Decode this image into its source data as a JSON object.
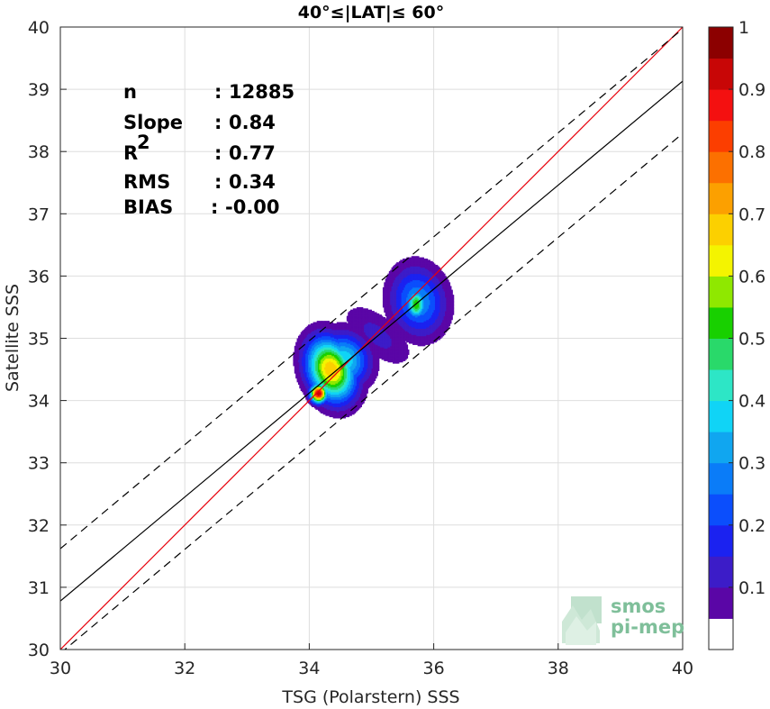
{
  "chart_data": {
    "type": "heatmap",
    "title": "40°≤|LAT|≤ 60°",
    "xlabel": "TSG (Polarstern) SSS",
    "ylabel": "Satellite SSS",
    "xlim": [
      30,
      40
    ],
    "ylim": [
      30,
      40
    ],
    "xticks": [
      "30",
      "32",
      "34",
      "36",
      "38",
      "40"
    ],
    "yticks": [
      "30",
      "31",
      "32",
      "33",
      "34",
      "35",
      "36",
      "37",
      "38",
      "39",
      "40"
    ],
    "grid": true,
    "stats": [
      {
        "label": "n",
        "sep": ":",
        "value": "12885"
      },
      {
        "label": "Slope",
        "sep": ":",
        "value": "0.84"
      },
      {
        "label": "R",
        "sup": "2",
        "sep": ":",
        "value": "0.77"
      },
      {
        "label": "RMS",
        "sep": ":",
        "value": "0.34"
      },
      {
        "label": "BIAS",
        "sep": ":",
        "value": "-0.00"
      }
    ],
    "lines": [
      {
        "name": "one-to-one",
        "color": "#e8000b",
        "style": "solid",
        "points": [
          [
            30,
            30
          ],
          [
            40,
            40
          ]
        ]
      },
      {
        "name": "regression",
        "color": "#000000",
        "style": "solid",
        "points": [
          [
            30,
            30.78
          ],
          [
            40,
            39.13
          ]
        ]
      },
      {
        "name": "upper-bound",
        "color": "#000000",
        "style": "dashed",
        "points": [
          [
            30,
            31.62
          ],
          [
            40,
            39.97
          ]
        ]
      },
      {
        "name": "lower-bound",
        "color": "#000000",
        "style": "dashed",
        "points": [
          [
            30,
            29.94
          ],
          [
            40,
            38.29
          ]
        ]
      }
    ],
    "density_clusters": [
      {
        "center": [
          34.15,
          34.12
        ],
        "sx": 0.09,
        "sy": 0.1,
        "rot": 0,
        "peak": 0.95
      },
      {
        "center": [
          34.35,
          34.5
        ],
        "sx": 0.25,
        "sy": 0.35,
        "rot": -0.35,
        "peak": 0.7
      },
      {
        "center": [
          34.55,
          34.65
        ],
        "sx": 0.28,
        "sy": 0.3,
        "rot": -0.4,
        "peak": 0.4
      },
      {
        "center": [
          35.72,
          35.55
        ],
        "sx": 0.11,
        "sy": 0.16,
        "rot": 0,
        "peak": 0.55
      },
      {
        "center": [
          35.75,
          35.6
        ],
        "sx": 0.3,
        "sy": 0.38,
        "rot": -0.2,
        "peak": 0.3
      },
      {
        "center": [
          35.1,
          35.05
        ],
        "sx": 0.45,
        "sy": 0.22,
        "rot": 0.7,
        "peak": 0.12
      }
    ],
    "colorbar": {
      "min": 0,
      "max": 1,
      "ticks": [
        "0.1",
        "0.2",
        "0.3",
        "0.4",
        "0.5",
        "0.6",
        "0.7",
        "0.8",
        "0.9",
        "1"
      ],
      "levels": [
        0.05,
        0.1,
        0.15,
        0.2,
        0.25,
        0.3,
        0.35,
        0.4,
        0.45,
        0.5,
        0.55,
        0.6,
        0.65,
        0.7,
        0.75,
        0.8,
        0.85,
        0.9,
        0.95
      ],
      "colors": [
        "#ffffff",
        "#5a06a6",
        "#3c1cc8",
        "#1b22f0",
        "#0b4efc",
        "#0a7cf8",
        "#10a6f0",
        "#10d4f6",
        "#2de6c6",
        "#29d96a",
        "#18d000",
        "#8fe800",
        "#f4f400",
        "#fcd000",
        "#fca000",
        "#fc7000",
        "#fc3e00",
        "#f41010",
        "#c80606",
        "#8c0000"
      ]
    }
  },
  "watermark": {
    "line1": "smos",
    "line2": "pi-mep",
    "color": "#7fbf9a"
  }
}
